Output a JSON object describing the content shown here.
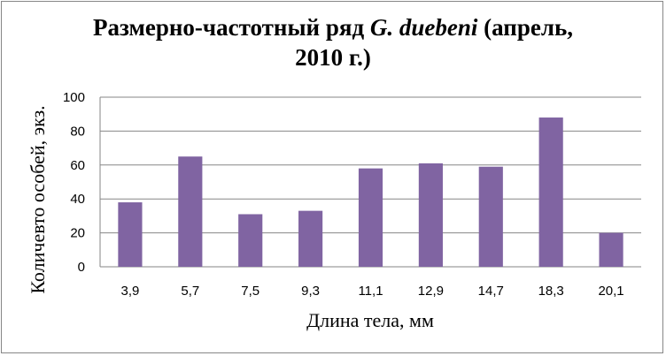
{
  "chart_data": {
    "type": "bar",
    "title_parts": [
      "Размерно-частотный ряд ",
      "G. duebeni",
      " (апрель,",
      "2010 г.)"
    ],
    "xlabel": "Длина тела, мм",
    "ylabel": "Количевто особей, экз.",
    "categories": [
      "3,9",
      "5,7",
      "7,5",
      "9,3",
      "11,1",
      "12,9",
      "14,7",
      "18,3",
      "20,1"
    ],
    "values": [
      38,
      65,
      31,
      33,
      58,
      61,
      59,
      88,
      20
    ],
    "ylim": [
      0,
      100
    ],
    "yticks": [
      0,
      20,
      40,
      60,
      80,
      100
    ],
    "grid": true,
    "legend": "none",
    "bar_color": "#8064a2",
    "grid_color": "#868686"
  }
}
